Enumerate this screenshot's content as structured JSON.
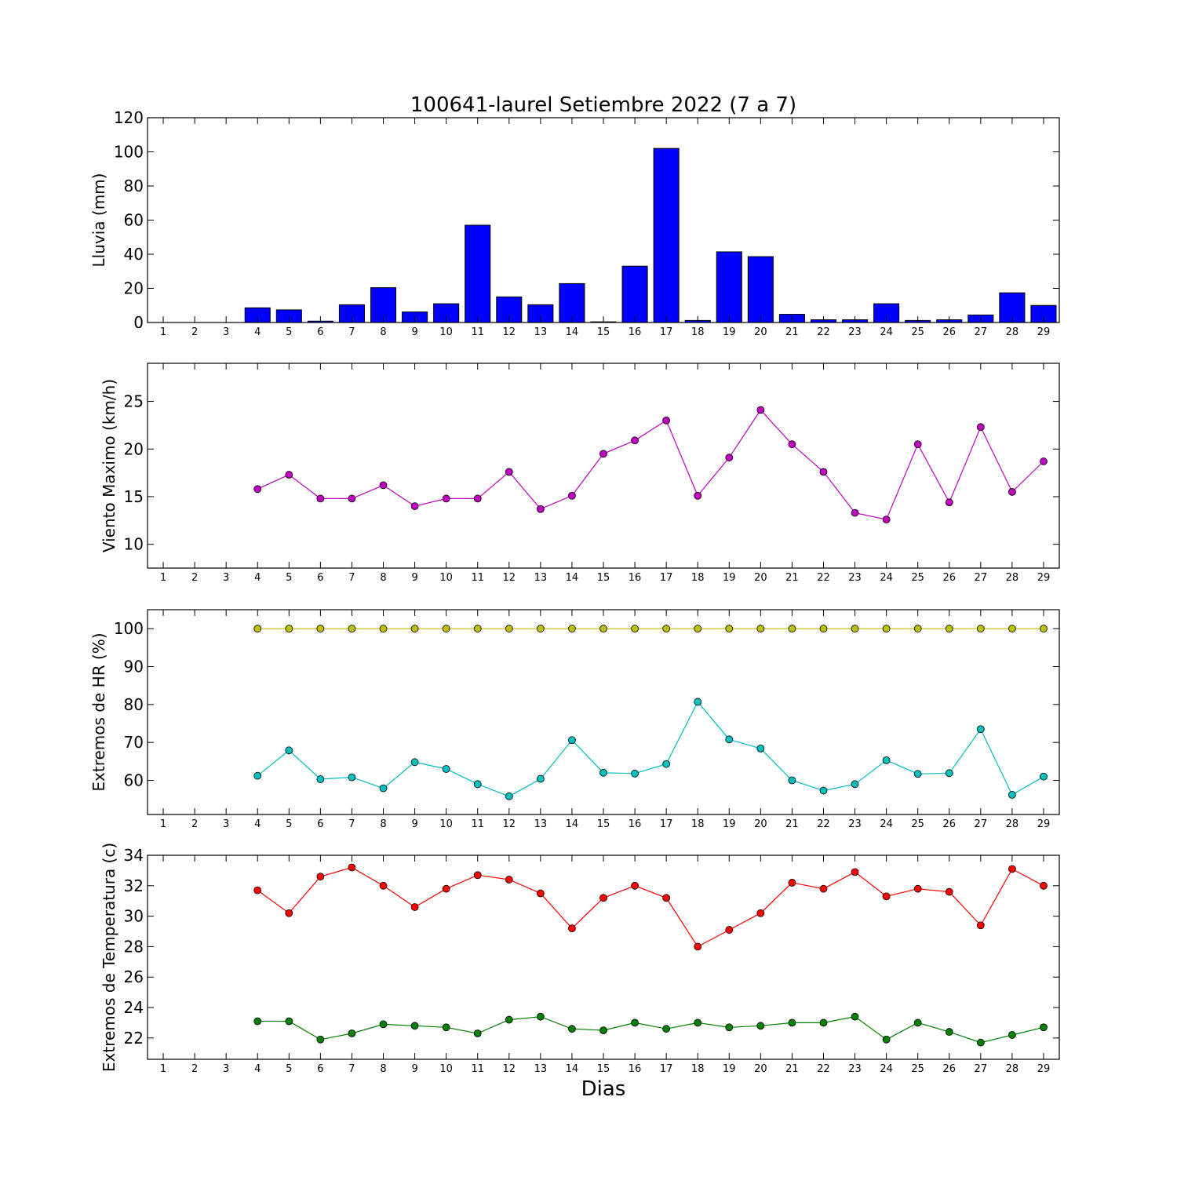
{
  "chart_data": [
    {
      "type": "bar",
      "title": "100641-laurel Setiembre 2022  (7 a 7)",
      "ylabel": "Lluvia (mm)",
      "xlabel": "",
      "ylim": [
        0,
        120
      ],
      "yticks": [
        0,
        20,
        40,
        60,
        80,
        100,
        120
      ],
      "xlim": [
        0.5,
        29.5
      ],
      "categories": [
        "1",
        "2",
        "3",
        "4",
        "5",
        "6",
        "7",
        "8",
        "9",
        "10",
        "11",
        "12",
        "13",
        "14",
        "15",
        "16",
        "17",
        "18",
        "19",
        "20",
        "21",
        "22",
        "23",
        "24",
        "25",
        "26",
        "27",
        "28",
        "29"
      ],
      "x": [
        1,
        2,
        3,
        4,
        5,
        6,
        7,
        8,
        9,
        10,
        11,
        12,
        13,
        14,
        15,
        16,
        17,
        18,
        19,
        20,
        21,
        22,
        23,
        24,
        25,
        26,
        27,
        28,
        29
      ],
      "series": [
        {
          "values": [
            0,
            0,
            0,
            8.6,
            7.4,
            0.8,
            10.4,
            20.4,
            6.2,
            11.0,
            57.0,
            15.0,
            10.4,
            22.8,
            0.4,
            33.0,
            102.0,
            1.2,
            41.4,
            38.6,
            4.8,
            1.6,
            1.6,
            11.0,
            1.2,
            1.6,
            4.4,
            17.4,
            10.0
          ],
          "color": "#0000ff"
        }
      ],
      "grid": false
    },
    {
      "type": "line",
      "ylabel": "Viento Maximo (km/h)",
      "xlabel": "",
      "ylim": [
        7.5,
        29
      ],
      "yticks": [
        10,
        15,
        20,
        25
      ],
      "xlim": [
        0.5,
        29.5
      ],
      "categories": [
        "1",
        "2",
        "3",
        "4",
        "5",
        "6",
        "7",
        "8",
        "9",
        "10",
        "11",
        "12",
        "13",
        "14",
        "15",
        "16",
        "17",
        "18",
        "19",
        "20",
        "21",
        "22",
        "23",
        "24",
        "25",
        "26",
        "27",
        "28",
        "29"
      ],
      "x": [
        4,
        5,
        6,
        7,
        8,
        9,
        10,
        11,
        12,
        13,
        14,
        15,
        16,
        17,
        18,
        19,
        20,
        21,
        22,
        23,
        24,
        25,
        26,
        27,
        28,
        29
      ],
      "series": [
        {
          "values": [
            15.8,
            17.3,
            14.8,
            14.8,
            16.2,
            14.0,
            14.8,
            14.8,
            17.6,
            13.7,
            15.1,
            19.5,
            20.9,
            23.0,
            15.1,
            19.1,
            24.1,
            20.5,
            17.6,
            13.3,
            12.6,
            20.5,
            14.4,
            22.3,
            15.5,
            18.7
          ],
          "color": "#bf00bf"
        }
      ],
      "grid": false
    },
    {
      "type": "line",
      "ylabel": "Extremos de HR (%)",
      "xlabel": "",
      "ylim": [
        51,
        105
      ],
      "yticks": [
        60,
        70,
        80,
        90,
        100
      ],
      "xlim": [
        0.5,
        29.5
      ],
      "categories": [
        "1",
        "2",
        "3",
        "4",
        "5",
        "6",
        "7",
        "8",
        "9",
        "10",
        "11",
        "12",
        "13",
        "14",
        "15",
        "16",
        "17",
        "18",
        "19",
        "20",
        "21",
        "22",
        "23",
        "24",
        "25",
        "26",
        "27",
        "28",
        "29"
      ],
      "x": [
        4,
        5,
        6,
        7,
        8,
        9,
        10,
        11,
        12,
        13,
        14,
        15,
        16,
        17,
        18,
        19,
        20,
        21,
        22,
        23,
        24,
        25,
        26,
        27,
        28,
        29
      ],
      "series": [
        {
          "values": [
            100,
            100,
            100,
            100,
            100,
            100,
            100,
            100,
            100,
            100,
            100,
            100,
            100,
            100,
            100,
            100,
            100,
            100,
            100,
            100,
            100,
            100,
            100,
            100,
            100,
            100
          ],
          "color": "#bfbf00"
        },
        {
          "values": [
            61.2,
            67.9,
            60.3,
            60.8,
            57.9,
            64.8,
            63.0,
            59.0,
            55.8,
            60.4,
            70.6,
            62.0,
            61.8,
            64.3,
            80.7,
            70.8,
            68.4,
            60.0,
            57.3,
            59.0,
            65.3,
            61.7,
            61.9,
            73.5,
            56.2,
            61.0
          ],
          "color": "#00bfbf"
        }
      ],
      "grid": false
    },
    {
      "type": "line",
      "ylabel": "Extremos de Temperatura (c)",
      "xlabel": "Dias",
      "ylim": [
        20.6,
        34
      ],
      "yticks": [
        22,
        24,
        26,
        28,
        30,
        32,
        34
      ],
      "xlim": [
        0.5,
        29.5
      ],
      "categories": [
        "1",
        "2",
        "3",
        "4",
        "5",
        "6",
        "7",
        "8",
        "9",
        "10",
        "11",
        "12",
        "13",
        "14",
        "15",
        "16",
        "17",
        "18",
        "19",
        "20",
        "21",
        "22",
        "23",
        "24",
        "25",
        "26",
        "27",
        "28",
        "29"
      ],
      "x": [
        4,
        5,
        6,
        7,
        8,
        9,
        10,
        11,
        12,
        13,
        14,
        15,
        16,
        17,
        18,
        19,
        20,
        21,
        22,
        23,
        24,
        25,
        26,
        27,
        28,
        29
      ],
      "series": [
        {
          "values": [
            31.7,
            30.2,
            32.6,
            33.2,
            32.0,
            30.6,
            31.8,
            32.7,
            32.4,
            31.5,
            29.2,
            31.2,
            32.0,
            31.2,
            28.0,
            29.1,
            30.2,
            32.2,
            31.8,
            32.9,
            31.3,
            31.8,
            31.6,
            29.4,
            33.1,
            32.0
          ],
          "color": "#ff0000"
        },
        {
          "values": [
            23.1,
            23.1,
            21.9,
            22.3,
            22.9,
            22.8,
            22.7,
            22.3,
            23.2,
            23.4,
            22.6,
            22.5,
            23.0,
            22.6,
            23.0,
            22.7,
            22.8,
            23.0,
            23.0,
            23.4,
            21.9,
            23.0,
            22.4,
            21.7,
            22.2,
            22.7
          ],
          "color": "#008000"
        }
      ],
      "grid": false
    }
  ]
}
